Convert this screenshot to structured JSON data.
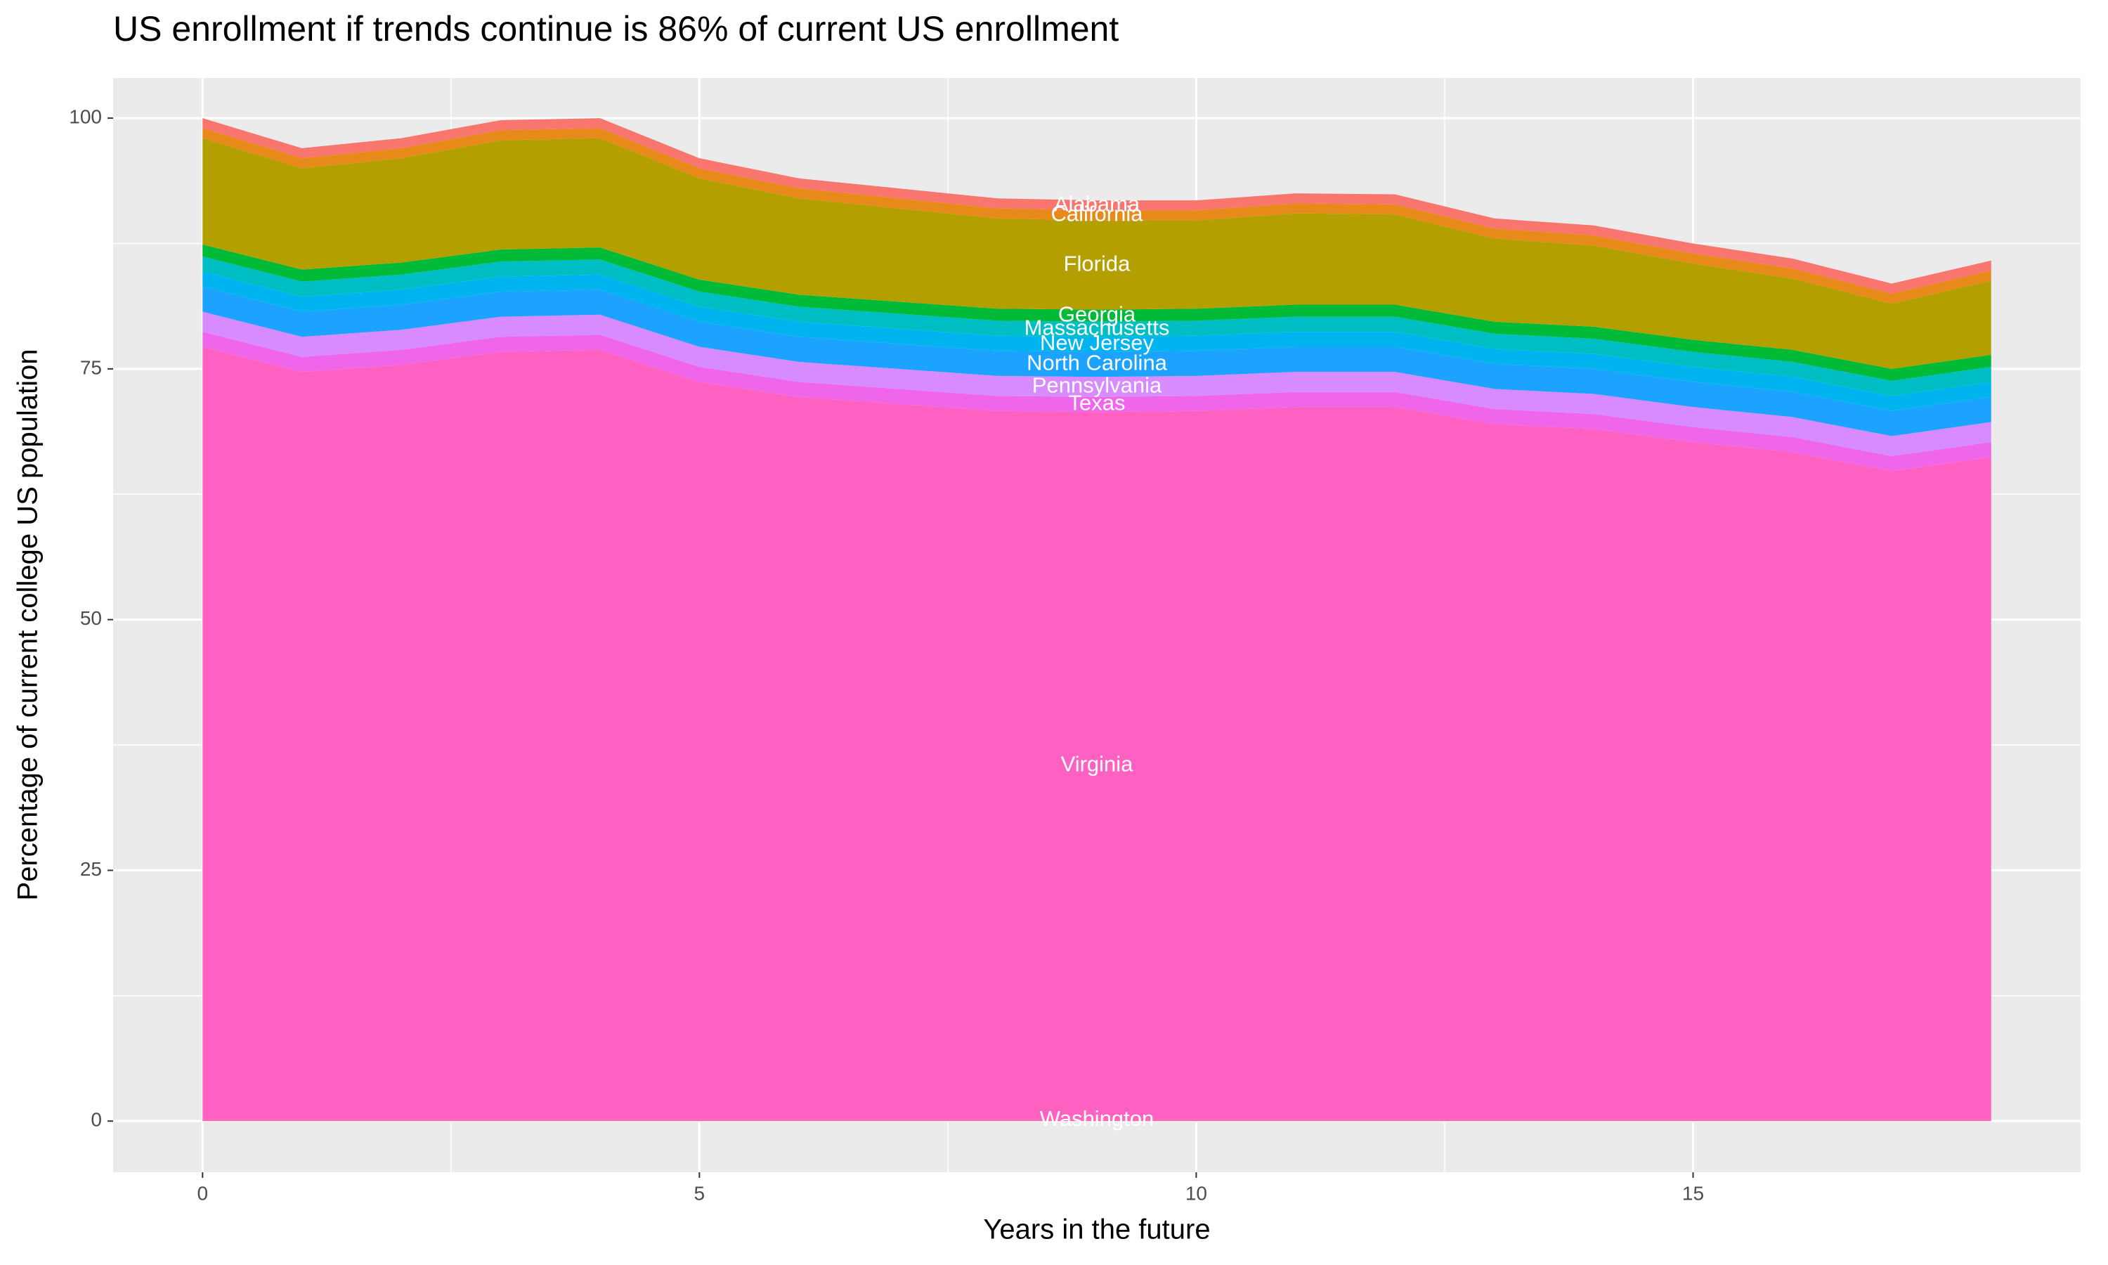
{
  "chart_data": {
    "type": "stacked_area",
    "title": "US enrollment if trends continue is 86% of current US enrollment",
    "x_label": "Years in the future",
    "y_label": "Percentage of current college US population",
    "x": [
      0,
      1,
      2,
      3,
      4,
      5,
      6,
      7,
      8,
      9,
      10,
      11,
      12,
      13,
      14,
      15,
      16,
      17,
      18
    ],
    "xlim": [
      -0.9,
      18.9
    ],
    "xticks": [
      0,
      5,
      10,
      15
    ],
    "ylim": [
      -5.1,
      104
    ],
    "yticks": [
      0,
      25,
      50,
      75,
      100
    ],
    "grid": true,
    "background": "#ebebeb",
    "label_x": 9,
    "series": [
      {
        "name": "Washington",
        "color": "#ff65ae",
        "values": [
          0.2,
          0.2,
          0.2,
          0.2,
          0.2,
          0.2,
          0.2,
          0.2,
          0.2,
          0.2,
          0.2,
          0.2,
          0.2,
          0.2,
          0.2,
          0.2,
          0.2,
          0.2,
          0.2
        ]
      },
      {
        "name": "Virginia",
        "color": "#ff61c3",
        "values": [
          77,
          74.5,
          75.2,
          76.5,
          76.7,
          73.5,
          72,
          71.3,
          70.6,
          70.5,
          70.6,
          71,
          71,
          69.3,
          68.8,
          67.5,
          66.5,
          64.6,
          66
        ]
      },
      {
        "name": "Texas",
        "color": "#f066ea",
        "values": [
          1.5,
          1.5,
          1.5,
          1.5,
          1.5,
          1.5,
          1.5,
          1.5,
          1.5,
          1.5,
          1.5,
          1.5,
          1.5,
          1.5,
          1.5,
          1.5,
          1.5,
          1.5,
          1.5
        ]
      },
      {
        "name": "Pennsylvania",
        "color": "#d78bff",
        "values": [
          2,
          2,
          2,
          2,
          2,
          2,
          2,
          2,
          2,
          2,
          2,
          2,
          2,
          2,
          2,
          2,
          2,
          2,
          2
        ]
      },
      {
        "name": "North Carolina",
        "color": "#1ba3ff",
        "values": [
          2.5,
          2.5,
          2.5,
          2.5,
          2.5,
          2.5,
          2.5,
          2.5,
          2.5,
          2.5,
          2.5,
          2.5,
          2.5,
          2.5,
          2.5,
          2.5,
          2.5,
          2.5,
          2.5
        ]
      },
      {
        "name": "New Jersey",
        "color": "#00b4ef",
        "values": [
          1.5,
          1.5,
          1.5,
          1.5,
          1.5,
          1.5,
          1.5,
          1.5,
          1.5,
          1.5,
          1.5,
          1.5,
          1.5,
          1.5,
          1.5,
          1.5,
          1.5,
          1.5,
          1.5
        ]
      },
      {
        "name": "Massachusetts",
        "color": "#00bfc4",
        "values": [
          1.5,
          1.5,
          1.5,
          1.5,
          1.5,
          1.5,
          1.5,
          1.5,
          1.5,
          1.5,
          1.5,
          1.5,
          1.5,
          1.5,
          1.5,
          1.5,
          1.5,
          1.5,
          1.5
        ]
      },
      {
        "name": "Georgia",
        "color": "#00ba38",
        "values": [
          1.2,
          1.2,
          1.2,
          1.2,
          1.2,
          1.2,
          1.2,
          1.2,
          1.2,
          1.2,
          1.2,
          1.2,
          1.2,
          1.2,
          1.2,
          1.2,
          1.2,
          1.2,
          1.2
        ]
      },
      {
        "name": "Florida",
        "color": "#b3a000",
        "values": [
          10.6,
          10.1,
          10.4,
          10.9,
          10.9,
          10.1,
          9.6,
          9.3,
          9.0,
          8.9,
          8.8,
          9.1,
          9.0,
          8.3,
          8.1,
          7.6,
          7.1,
          6.5,
          7.4
        ]
      },
      {
        "name": "California",
        "color": "#e88a1a",
        "values": [
          1,
          1,
          1,
          1,
          1,
          1,
          1,
          1,
          1,
          1,
          1,
          1,
          1,
          1,
          1,
          1,
          1,
          1,
          1
        ]
      },
      {
        "name": "Alabama",
        "color": "#f8766d",
        "values": [
          1,
          1,
          1,
          1,
          1,
          1,
          1,
          1,
          1,
          1,
          1,
          1,
          1,
          1,
          1,
          1,
          1,
          1,
          1
        ]
      }
    ]
  }
}
